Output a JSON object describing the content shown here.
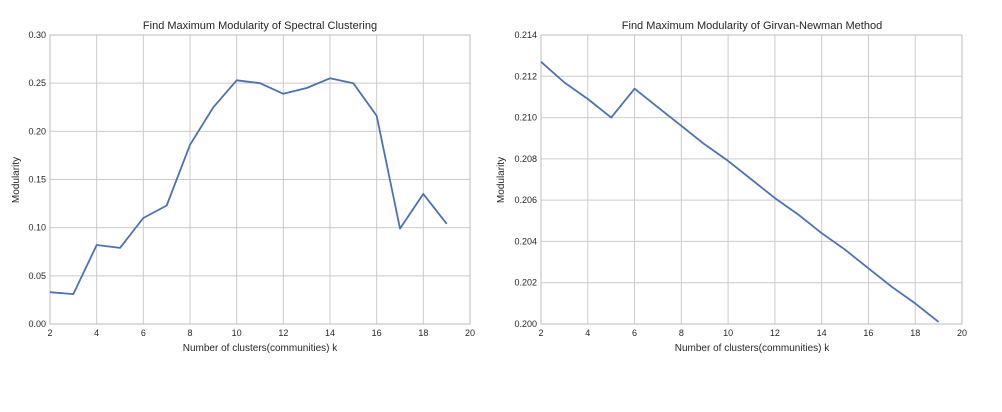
{
  "chart_data": [
    {
      "type": "line",
      "title": "Find Maximum Modularity of Spectral Clustering",
      "xlabel": "Number of clusters(communities) k",
      "ylabel": "Modularity",
      "xlim": [
        2,
        20
      ],
      "ylim": [
        0.0,
        0.3
      ],
      "xticks": [
        "2",
        "4",
        "6",
        "8",
        "10",
        "12",
        "14",
        "16",
        "18",
        "20"
      ],
      "yticks": [
        "0.00",
        "0.05",
        "0.10",
        "0.15",
        "0.20",
        "0.25",
        "0.30"
      ],
      "grid": true,
      "line_color": "#4c72b0",
      "series": [
        {
          "x": [
            2,
            3,
            4,
            5,
            6,
            7,
            8,
            9,
            10,
            11,
            12,
            13,
            14,
            15,
            16,
            17,
            18,
            19
          ],
          "values": [
            0.033,
            0.031,
            0.082,
            0.079,
            0.11,
            0.123,
            0.186,
            0.225,
            0.253,
            0.25,
            0.239,
            0.245,
            0.255,
            0.25,
            0.216,
            0.099,
            0.135,
            0.104
          ]
        }
      ]
    },
    {
      "type": "line",
      "title": "Find Maximum Modularity of Girvan-Newman Method",
      "xlabel": "Number of clusters(communities) k",
      "ylabel": "Modularity",
      "xlim": [
        2,
        20
      ],
      "ylim": [
        0.2,
        0.214
      ],
      "xticks": [
        "2",
        "4",
        "6",
        "8",
        "10",
        "12",
        "14",
        "16",
        "18",
        "20"
      ],
      "yticks": [
        "0.200",
        "0.202",
        "0.204",
        "0.206",
        "0.208",
        "0.210",
        "0.212",
        "0.214"
      ],
      "grid": true,
      "line_color": "#4c72b0",
      "series": [
        {
          "x": [
            2,
            3,
            4,
            5,
            6,
            7,
            8,
            9,
            10,
            11,
            12,
            13,
            14,
            15,
            16,
            17,
            18,
            19
          ],
          "values": [
            0.2127,
            0.2117,
            0.2109,
            0.21,
            0.2114,
            0.2105,
            0.2096,
            0.2087,
            0.2079,
            0.207,
            0.2061,
            0.2053,
            0.2044,
            0.2036,
            0.2027,
            0.2018,
            0.201,
            0.2001
          ]
        }
      ]
    }
  ]
}
